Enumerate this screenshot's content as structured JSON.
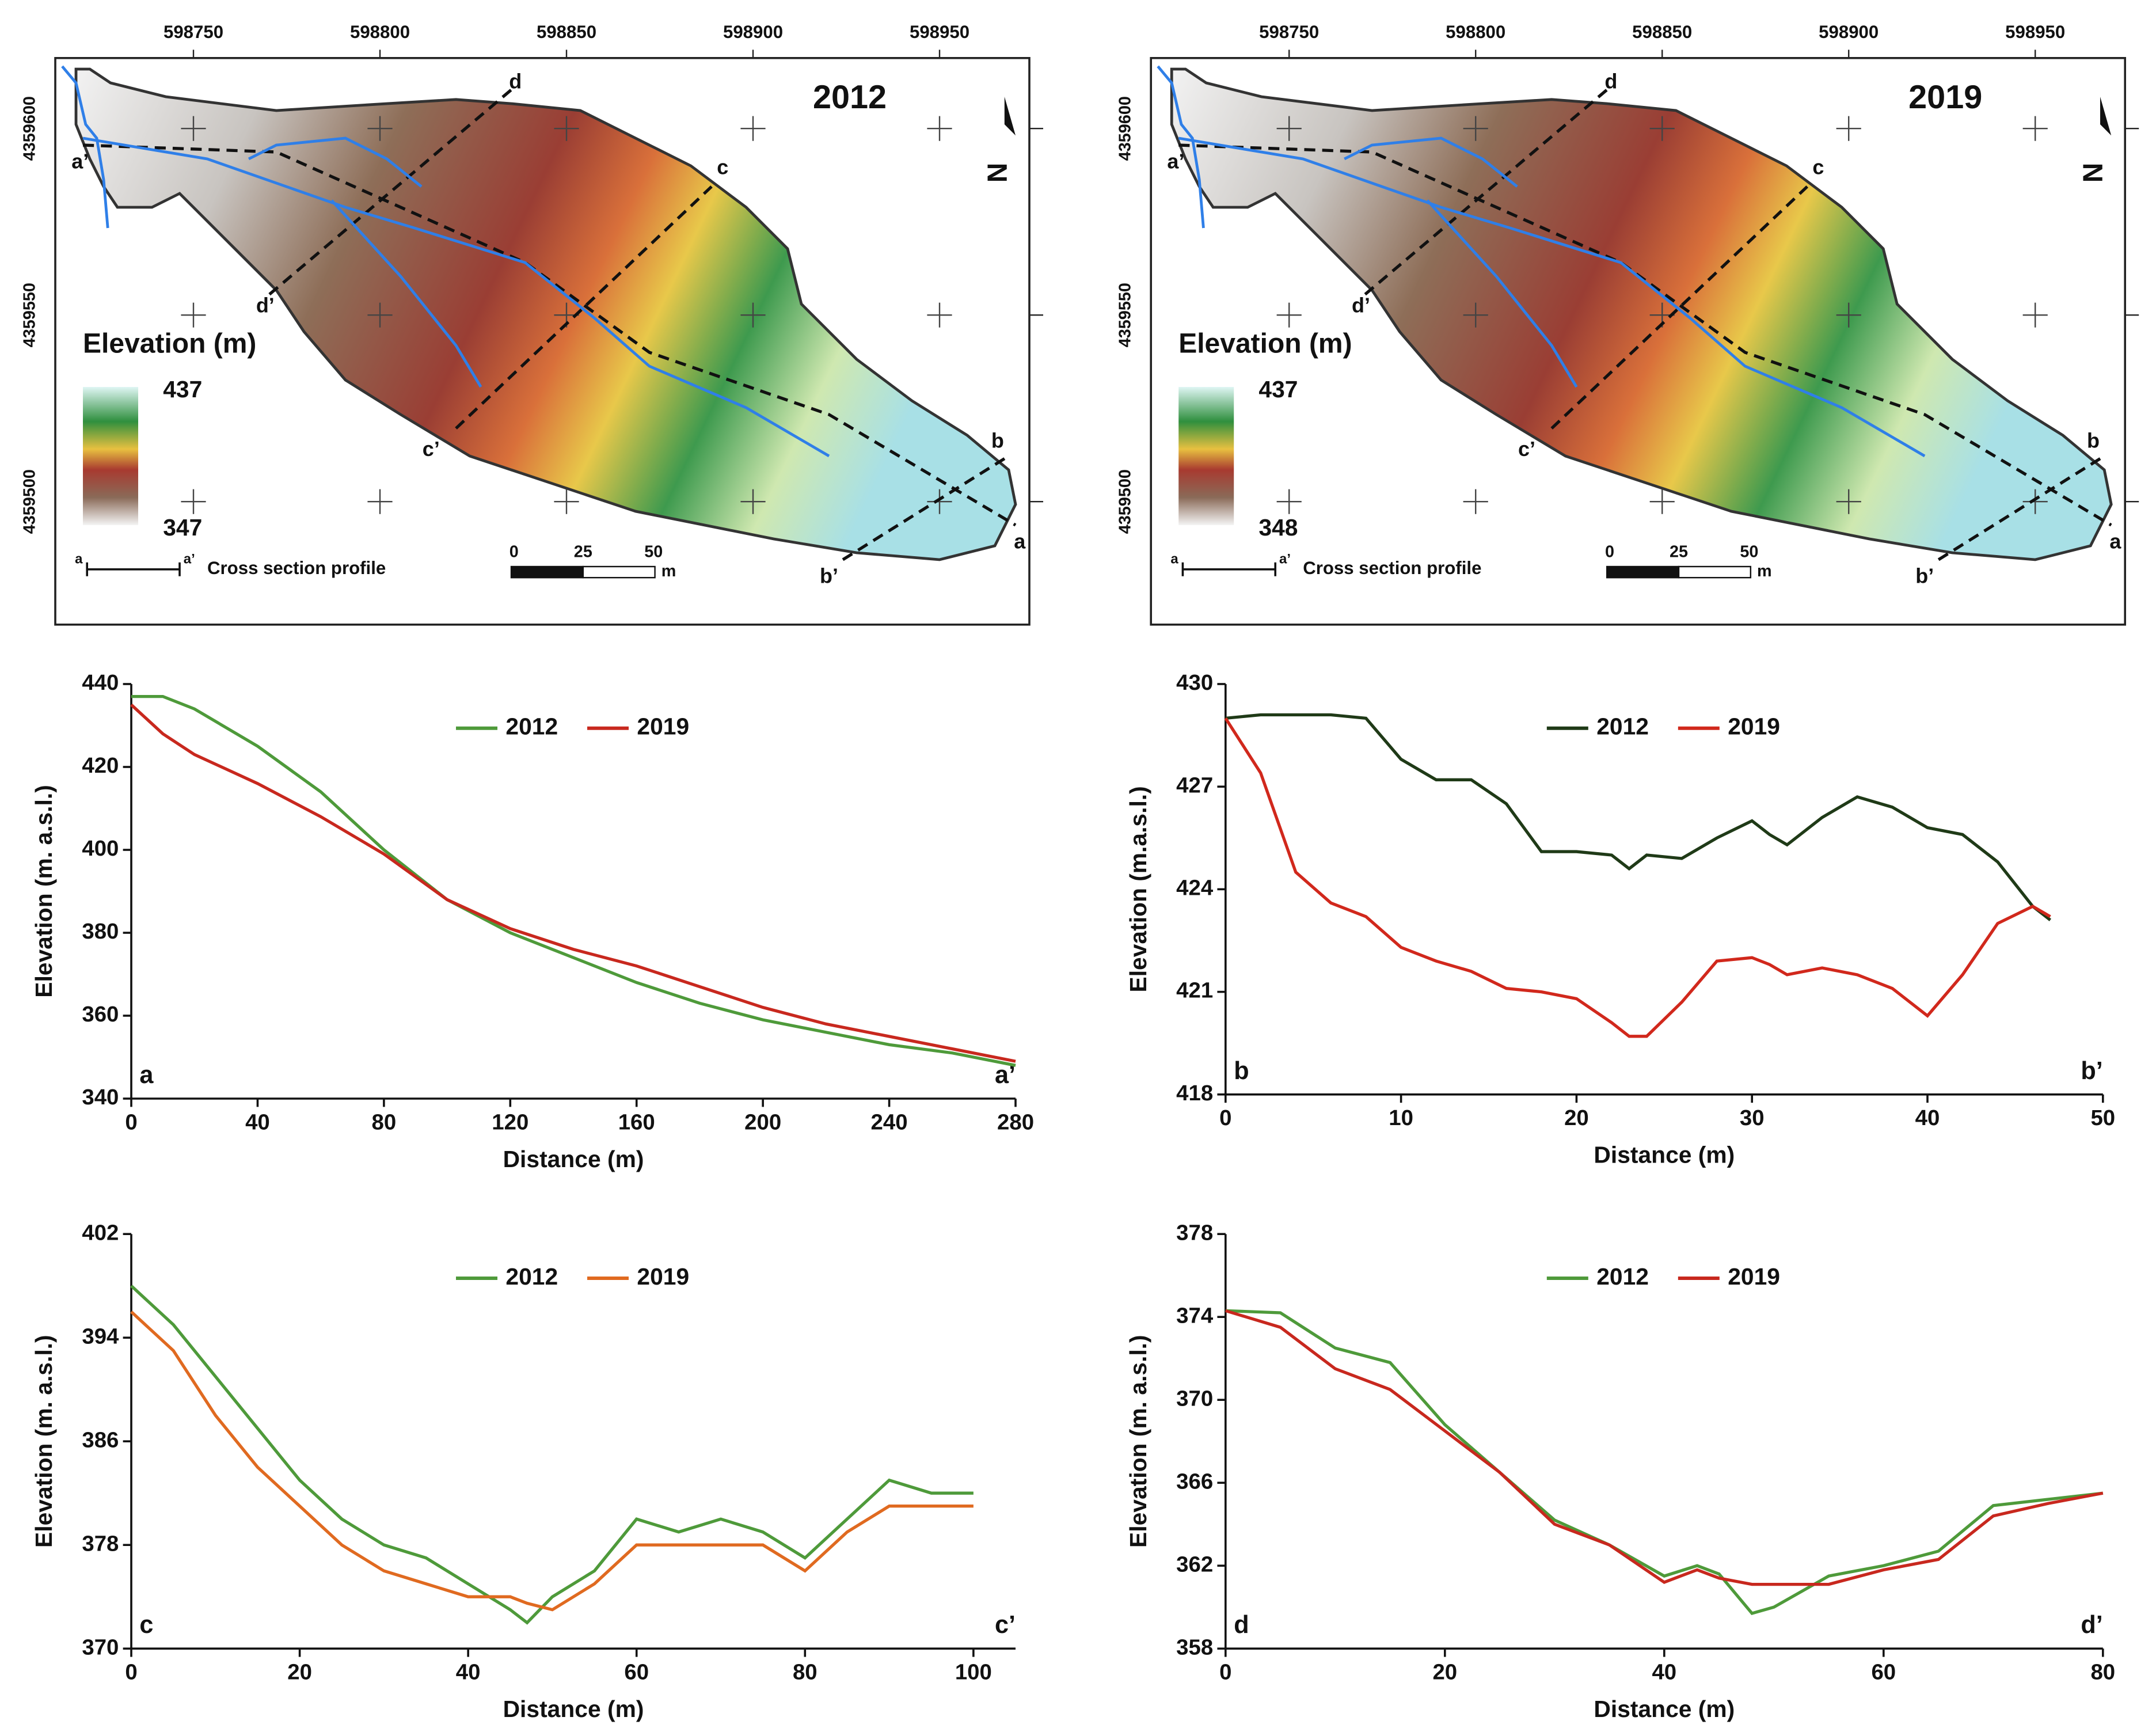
{
  "maps": [
    {
      "title": "2012",
      "xticks": [
        598750,
        598800,
        598850,
        598900,
        598950
      ],
      "yticks": [
        4359600,
        4359550,
        4359500
      ],
      "legend_title": "Elevation (m)",
      "legend_max": 437,
      "legend_min": 347,
      "profile_start": "a",
      "profile_end": "a’",
      "profile_label": "Cross section profile",
      "scale_labels": [
        "0",
        "25",
        "50",
        "m"
      ],
      "north_label": "N",
      "section_labels": [
        "a",
        "a’",
        "b",
        "b’",
        "c",
        "c’",
        "d",
        "d’"
      ]
    },
    {
      "title": "2019",
      "xticks": [
        598750,
        598800,
        598850,
        598900,
        598950
      ],
      "yticks": [
        4359600,
        4359550,
        4359500
      ],
      "legend_title": "Elevation (m)",
      "legend_max": 437,
      "legend_min": 348,
      "profile_start": "a",
      "profile_end": "a’",
      "profile_label": "Cross section profile",
      "scale_labels": [
        "0",
        "25",
        "50",
        "m"
      ],
      "north_label": "N",
      "section_labels": [
        "a",
        "a’",
        "b",
        "b’",
        "c",
        "c’",
        "d",
        "d’"
      ]
    }
  ],
  "chart_data": [
    {
      "type": "line",
      "xlabel": "Distance (m)",
      "ylabel": "Elevation (m. a.s.l.)",
      "start_label": "a",
      "end_label": "a’",
      "legend": "upper center",
      "xlim": [
        0,
        280
      ],
      "xticks": [
        0,
        40,
        80,
        120,
        160,
        200,
        240,
        280
      ],
      "ylim": [
        340,
        440
      ],
      "yticks": [
        340,
        360,
        380,
        400,
        420,
        440
      ],
      "x": [
        0,
        10,
        20,
        40,
        60,
        80,
        100,
        120,
        140,
        160,
        180,
        200,
        220,
        240,
        260,
        280
      ],
      "series": [
        {
          "name": "2012",
          "color": "#4e9a3a",
          "values": [
            437,
            437,
            434,
            425,
            414,
            400,
            388,
            380,
            374,
            368,
            363,
            359,
            356,
            353,
            351,
            348
          ]
        },
        {
          "name": "2019",
          "color": "#c8281e",
          "values": [
            435,
            428,
            423,
            416,
            408,
            399,
            388,
            381,
            376,
            372,
            367,
            362,
            358,
            355,
            352,
            349
          ]
        }
      ]
    },
    {
      "type": "line",
      "xlabel": "Distance (m)",
      "ylabel": "Elevation (m.a.s.l.)",
      "start_label": "b",
      "end_label": "b’",
      "legend": "upper center",
      "xlim": [
        0,
        50
      ],
      "xticks": [
        0,
        10,
        20,
        30,
        40,
        50
      ],
      "ylim": [
        418,
        430
      ],
      "yticks": [
        418,
        421,
        424,
        427,
        430
      ],
      "x": [
        0,
        2,
        4,
        6,
        8,
        10,
        12,
        14,
        16,
        18,
        20,
        22,
        23,
        24,
        26,
        28,
        30,
        31,
        32,
        34,
        36,
        38,
        40,
        42,
        44,
        46,
        47
      ],
      "series": [
        {
          "name": "2012",
          "color": "#1f3a17",
          "values": [
            429,
            429.1,
            429.1,
            429.1,
            429,
            427.8,
            427.2,
            427.2,
            426.5,
            425.1,
            425.1,
            425,
            424.6,
            425,
            424.9,
            425.5,
            426,
            425.6,
            425.3,
            426.1,
            426.7,
            426.4,
            425.8,
            425.6,
            424.8,
            423.5,
            423.1
          ]
        },
        {
          "name": "2019",
          "color": "#d1281c",
          "values": [
            429,
            427.4,
            424.5,
            423.6,
            423.2,
            422.3,
            421.9,
            421.6,
            421.1,
            421,
            420.8,
            420.1,
            419.7,
            419.7,
            420.7,
            421.9,
            422,
            421.8,
            421.5,
            421.7,
            421.5,
            421.1,
            420.3,
            421.5,
            423,
            423.5,
            423.2
          ]
        }
      ]
    },
    {
      "type": "line",
      "xlabel": "Distance (m)",
      "ylabel": "Elevation (m. a.s.l.)",
      "start_label": "c",
      "end_label": "c’",
      "legend": "upper center",
      "xlim": [
        0,
        105
      ],
      "xticks": [
        0,
        20,
        40,
        60,
        80,
        100
      ],
      "ylim": [
        370,
        402
      ],
      "yticks": [
        370,
        378,
        386,
        394,
        402
      ],
      "x": [
        0,
        5,
        10,
        15,
        20,
        25,
        30,
        35,
        40,
        45,
        47,
        50,
        55,
        60,
        65,
        70,
        75,
        80,
        85,
        90,
        95,
        100
      ],
      "series": [
        {
          "name": "2012",
          "color": "#4e9a3a",
          "values": [
            398,
            395,
            391,
            387,
            383,
            380,
            378,
            377,
            375,
            373,
            372,
            374,
            376,
            380,
            379,
            380,
            379,
            377,
            380,
            383,
            382,
            382
          ]
        },
        {
          "name": "2019",
          "color": "#e06a20",
          "values": [
            396,
            393,
            388,
            384,
            381,
            378,
            376,
            375,
            374,
            374,
            373.5,
            373,
            375,
            378,
            378,
            378,
            378,
            376,
            379,
            381,
            381,
            381
          ]
        }
      ]
    },
    {
      "type": "line",
      "xlabel": "Distance (m)",
      "ylabel": "Elevation (m. a.s.l.)",
      "start_label": "d",
      "end_label": "d’",
      "legend": "upper center",
      "xlim": [
        0,
        80
      ],
      "xticks": [
        0,
        20,
        40,
        60,
        80
      ],
      "ylim": [
        358,
        378
      ],
      "yticks": [
        358,
        362,
        366,
        370,
        374,
        378
      ],
      "x": [
        0,
        5,
        10,
        15,
        20,
        25,
        30,
        35,
        40,
        43,
        45,
        48,
        50,
        55,
        60,
        65,
        70,
        75,
        80
      ],
      "series": [
        {
          "name": "2012",
          "color": "#4e9a3a",
          "values": [
            374.3,
            374.2,
            372.5,
            371.8,
            368.8,
            366.5,
            364.2,
            363,
            361.5,
            362,
            361.6,
            359.7,
            360,
            361.5,
            362,
            362.7,
            364.9,
            365.2,
            365.5
          ]
        },
        {
          "name": "2019",
          "color": "#c8281e",
          "values": [
            374.3,
            373.5,
            371.5,
            370.5,
            368.5,
            366.5,
            364,
            363,
            361.2,
            361.8,
            361.4,
            361.1,
            361.1,
            361.1,
            361.8,
            362.3,
            364.4,
            365,
            365.5
          ]
        }
      ]
    }
  ]
}
